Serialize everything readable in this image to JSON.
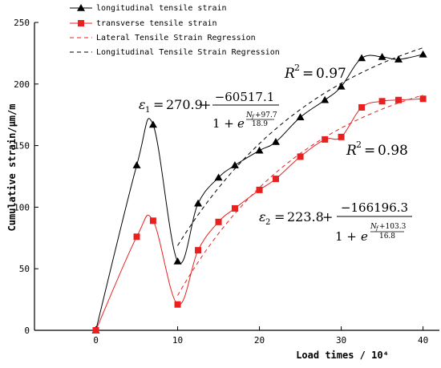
{
  "chart_data": {
    "type": "line",
    "xlabel": "Load times / 10⁴",
    "ylabel": "Cumulative strain/μm/m",
    "xlim": [
      -7.5,
      42
    ],
    "ylim": [
      0,
      250
    ],
    "x_ticks": [
      "0",
      "10",
      "20",
      "30",
      "40"
    ],
    "y_ticks": [
      "0",
      "50",
      "100",
      "150",
      "200",
      "250"
    ],
    "legend_position": "top-left",
    "series": [
      {
        "name": "longitudinal tensile strain",
        "color": "#000000",
        "marker": "triangle",
        "line": "solid",
        "x": [
          0,
          5,
          7,
          10,
          12.5,
          15,
          17,
          20,
          22,
          25,
          28,
          30,
          32.5,
          35,
          37,
          40
        ],
        "y": [
          0,
          134,
          167,
          56,
          103,
          124,
          134,
          146,
          153,
          173,
          187,
          198,
          221,
          222,
          220,
          224
        ]
      },
      {
        "name": "transverse tensile strain",
        "color": "#e8201f",
        "marker": "square",
        "line": "solid",
        "x": [
          0,
          5,
          7,
          10,
          12.5,
          15,
          17,
          20,
          22,
          25,
          28,
          30,
          32.5,
          35,
          37,
          40
        ],
        "y": [
          0,
          76,
          89,
          21,
          65,
          88,
          99,
          114,
          123,
          141,
          155,
          157,
          181,
          186,
          187,
          188
        ]
      },
      {
        "name": "Lateral Tensile Strain Regression",
        "color": "#e8201f",
        "marker": "none",
        "line": "dashed"
      },
      {
        "name": "Longitudinal Tensile Strain Regression",
        "color": "#000000",
        "marker": "none",
        "line": "dashed"
      }
    ],
    "annotations": {
      "r2_longitudinal": "0.97",
      "r2_transverse": "0.98",
      "eq1": {
        "lhs": "ε",
        "sub": "1",
        "const": "270.9",
        "num": "−60517.1",
        "exp_num": "+97.7",
        "exp_den": "18.9"
      },
      "eq2": {
        "lhs": "ε",
        "sub": "2",
        "const": "223.8",
        "num": "−166196.3",
        "exp_num": "+103.3",
        "exp_den": "16.8"
      }
    }
  }
}
